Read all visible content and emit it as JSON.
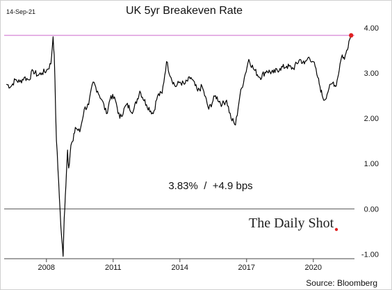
{
  "date_stamp": "14-Sep-21",
  "title": "UK 5yr Breakeven Rate",
  "annotation": "3.83%  /  +4.9 bps",
  "branding": "The Daily Shot",
  "source": "Source: Bloomberg",
  "colors": {
    "line": "#000000",
    "reference_line": "#cc66cc",
    "last_point": "#e02020",
    "zero_line": "#555555",
    "border": "#cfcfcf"
  },
  "chart_data": {
    "type": "line",
    "title": "UK 5yr Breakeven Rate",
    "xlabel": "",
    "ylabel": "",
    "x_tick_labels": [
      "2008",
      "2011",
      "2014",
      "2017",
      "2020"
    ],
    "y_tick_labels": [
      "4.00",
      "3.00",
      "2.00",
      "1.00",
      "0.00",
      "-1.00"
    ],
    "y_ticks": [
      4,
      3,
      2,
      1,
      0,
      -1
    ],
    "x_ticks": [
      2008,
      2011,
      2014,
      2017,
      2020
    ],
    "xlim": [
      2006.1,
      2021.85
    ],
    "ylim": [
      -1.1,
      4.15
    ],
    "grid": false,
    "horizontal_reference_lines": [
      0,
      3.83
    ],
    "series": [
      {
        "x": [
          2006.2,
          2006.4,
          2006.6,
          2006.8,
          2007.0,
          2007.2,
          2007.4,
          2007.6,
          2007.8,
          2008.0,
          2008.2,
          2008.3,
          2008.35,
          2008.45,
          2008.55,
          2008.65,
          2008.75,
          2008.8,
          2008.85,
          2008.9,
          2008.95,
          2009.0,
          2009.1,
          2009.2,
          2009.3,
          2009.5,
          2009.7,
          2009.9,
          2010.1,
          2010.3,
          2010.5,
          2010.7,
          2010.9,
          2011.1,
          2011.3,
          2011.6,
          2011.9,
          2012.2,
          2012.5,
          2012.8,
          2013.0,
          2013.2,
          2013.4,
          2013.6,
          2013.8,
          2014.0,
          2014.2,
          2014.5,
          2014.8,
          2015.0,
          2015.3,
          2015.6,
          2015.9,
          2016.1,
          2016.3,
          2016.5,
          2016.7,
          2016.9,
          2017.1,
          2017.3,
          2017.6,
          2017.9,
          2018.2,
          2018.5,
          2018.8,
          2019.1,
          2019.4,
          2019.6,
          2019.8,
          2020.0,
          2020.2,
          2020.3,
          2020.4,
          2020.5,
          2020.7,
          2020.9,
          2021.0,
          2021.1,
          2021.2,
          2021.3,
          2021.4,
          2021.5,
          2021.6,
          2021.7
        ],
        "values": [
          2.75,
          2.7,
          2.85,
          2.8,
          2.9,
          2.85,
          3.05,
          2.95,
          3.0,
          3.05,
          3.2,
          3.8,
          3.4,
          1.5,
          0.6,
          -0.4,
          -1.05,
          -0.2,
          0.3,
          0.8,
          1.3,
          0.9,
          1.4,
          1.5,
          1.8,
          1.7,
          2.2,
          2.3,
          2.8,
          2.6,
          2.4,
          2.1,
          2.5,
          2.4,
          2.0,
          2.3,
          2.15,
          2.6,
          2.3,
          2.1,
          2.5,
          2.55,
          3.25,
          2.9,
          2.7,
          2.8,
          2.75,
          2.9,
          2.6,
          2.7,
          2.2,
          2.5,
          2.3,
          2.4,
          2.0,
          1.85,
          2.5,
          2.9,
          3.3,
          3.1,
          2.9,
          3.05,
          3.0,
          3.1,
          3.15,
          3.1,
          3.3,
          3.2,
          3.35,
          3.25,
          2.9,
          2.7,
          2.5,
          2.4,
          2.65,
          2.8,
          2.7,
          2.9,
          3.2,
          3.4,
          3.3,
          3.5,
          3.7,
          3.83
        ]
      }
    ],
    "last_value": 3.83,
    "change_bps": 4.9
  }
}
